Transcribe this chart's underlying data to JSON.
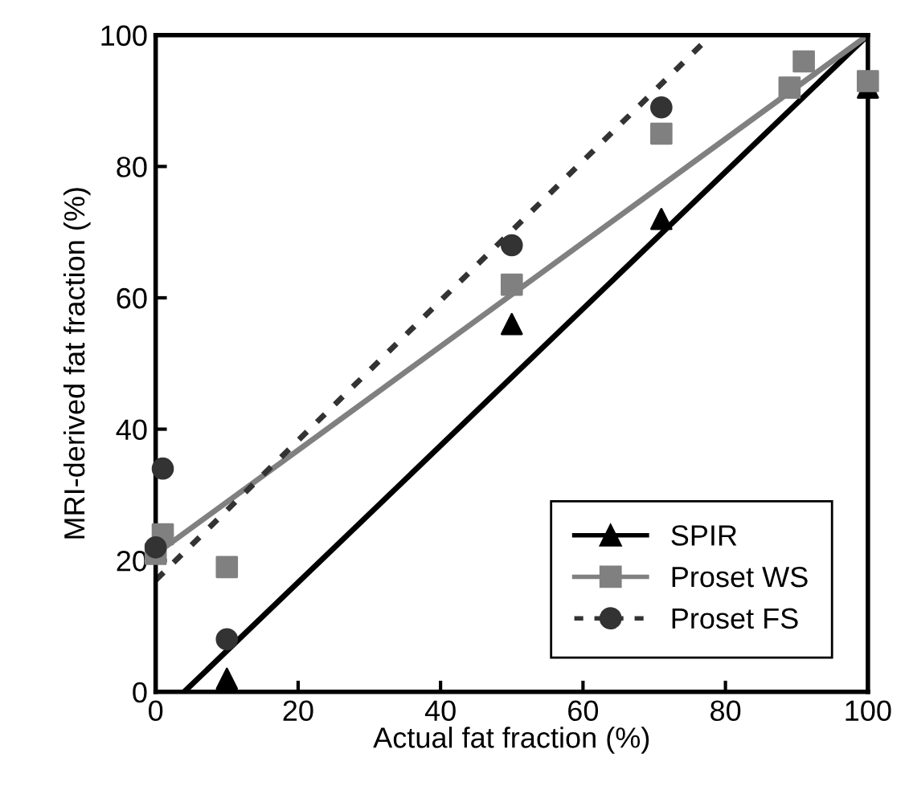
{
  "chart_data": {
    "type": "scatter",
    "xlabel": "Actual fat fraction (%)",
    "ylabel": "MRI-derived fat fraction (%)",
    "xlim": [
      0,
      100
    ],
    "ylim": [
      0,
      100
    ],
    "xticks": [
      0,
      20,
      40,
      60,
      80,
      100
    ],
    "yticks": [
      0,
      20,
      40,
      60,
      80,
      100
    ],
    "grid": false,
    "legend": "bottom right",
    "series": [
      {
        "name": "SPIR",
        "marker": "triangle",
        "color": "#000000",
        "x": [
          10,
          50,
          71,
          100
        ],
        "values": [
          2,
          56,
          72,
          92
        ]
      },
      {
        "type": "line",
        "line_style": "solid",
        "color": "#000000",
        "x": [
          4,
          100
        ],
        "values": [
          0,
          100
        ]
      },
      {
        "name": "Proset WS",
        "marker": "square",
        "color": "#808080",
        "x": [
          0,
          1,
          10,
          50,
          71,
          89,
          91,
          100
        ],
        "values": [
          21,
          24,
          19,
          62,
          85,
          92,
          96,
          93
        ]
      },
      {
        "type": "line",
        "line_style": "solid",
        "color": "#808080",
        "x": [
          0,
          100
        ],
        "values": [
          21,
          100
        ]
      },
      {
        "name": "Proset FS",
        "marker": "circle",
        "color": "#333333",
        "x": [
          0,
          1,
          10,
          50,
          71
        ],
        "values": [
          22,
          34,
          8,
          68,
          89
        ]
      },
      {
        "type": "line",
        "line_style": "dotted",
        "color": "#333333",
        "x": [
          0,
          78
        ],
        "values": [
          17,
          100
        ]
      }
    ]
  }
}
